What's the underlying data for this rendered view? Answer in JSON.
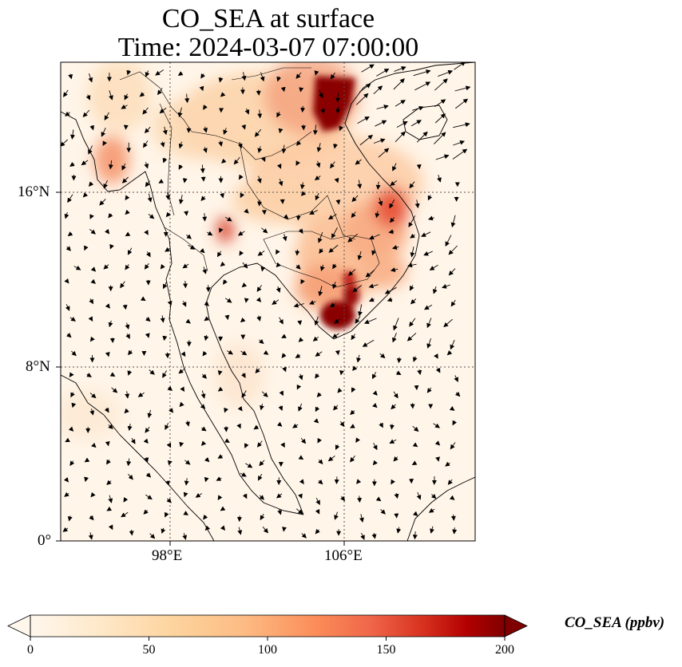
{
  "title": {
    "line1": "CO_SEA at surface",
    "line2": "Time: 2024-03-07 07:00:00"
  },
  "axes": {
    "x_ticks": [
      "98°E",
      "106°E"
    ],
    "y_ticks": [
      "16°N",
      "8°N",
      "0°"
    ]
  },
  "colorbar": {
    "label": "CO_SEA (ppbv)",
    "ticks": [
      "0",
      "50",
      "100",
      "150",
      "200"
    ],
    "range": [
      0,
      200
    ],
    "colormap": "OrRd",
    "extend": "both"
  },
  "colors": {
    "low": "#fff7ec",
    "mid_low": "#fdd49e",
    "mid": "#fc8d59",
    "high": "#d7301f",
    "max": "#7f0000",
    "coast": "#000000",
    "grid": "#555555"
  }
}
